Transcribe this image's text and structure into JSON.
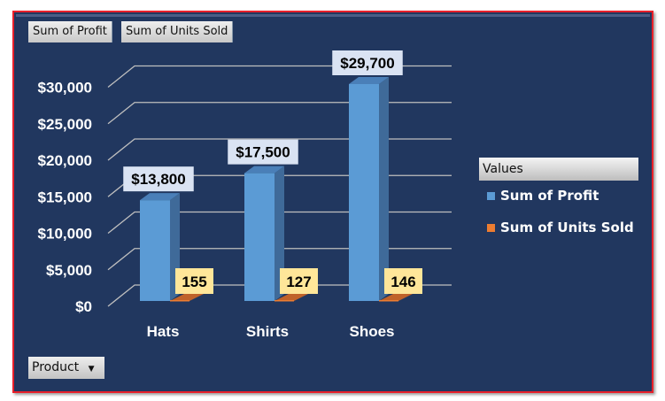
{
  "field_buttons": [
    "Sum of Profit",
    "Sum of Units Sold"
  ],
  "axis_button": {
    "label": "Product",
    "icon": "dropdown-arrow-icon"
  },
  "chart_data": {
    "type": "bar",
    "style": "3d-clustered-column",
    "categories": [
      "Hats",
      "Shirts",
      "Shoes"
    ],
    "series": [
      {
        "name": "Sum of Profit",
        "values": [
          13800,
          17500,
          29700
        ],
        "labels": [
          "$13,800",
          "$17,500",
          "$29,700"
        ],
        "color": "#5b9bd5"
      },
      {
        "name": "Sum of Units Sold",
        "values": [
          155,
          127,
          146
        ],
        "labels": [
          "155",
          "127",
          "146"
        ],
        "color": "#ed7d31"
      }
    ],
    "yticks": [
      "$0",
      "$5,000",
      "$10,000",
      "$15,000",
      "$20,000",
      "$25,000",
      "$30,000"
    ],
    "ylim": [
      0,
      30000
    ],
    "grid": true,
    "legend": {
      "title": "Values",
      "position": "right"
    }
  },
  "colors": {
    "background": "#21375f",
    "label_profit_bg": "#dae3f3",
    "label_units_bg": "#ffe699"
  }
}
